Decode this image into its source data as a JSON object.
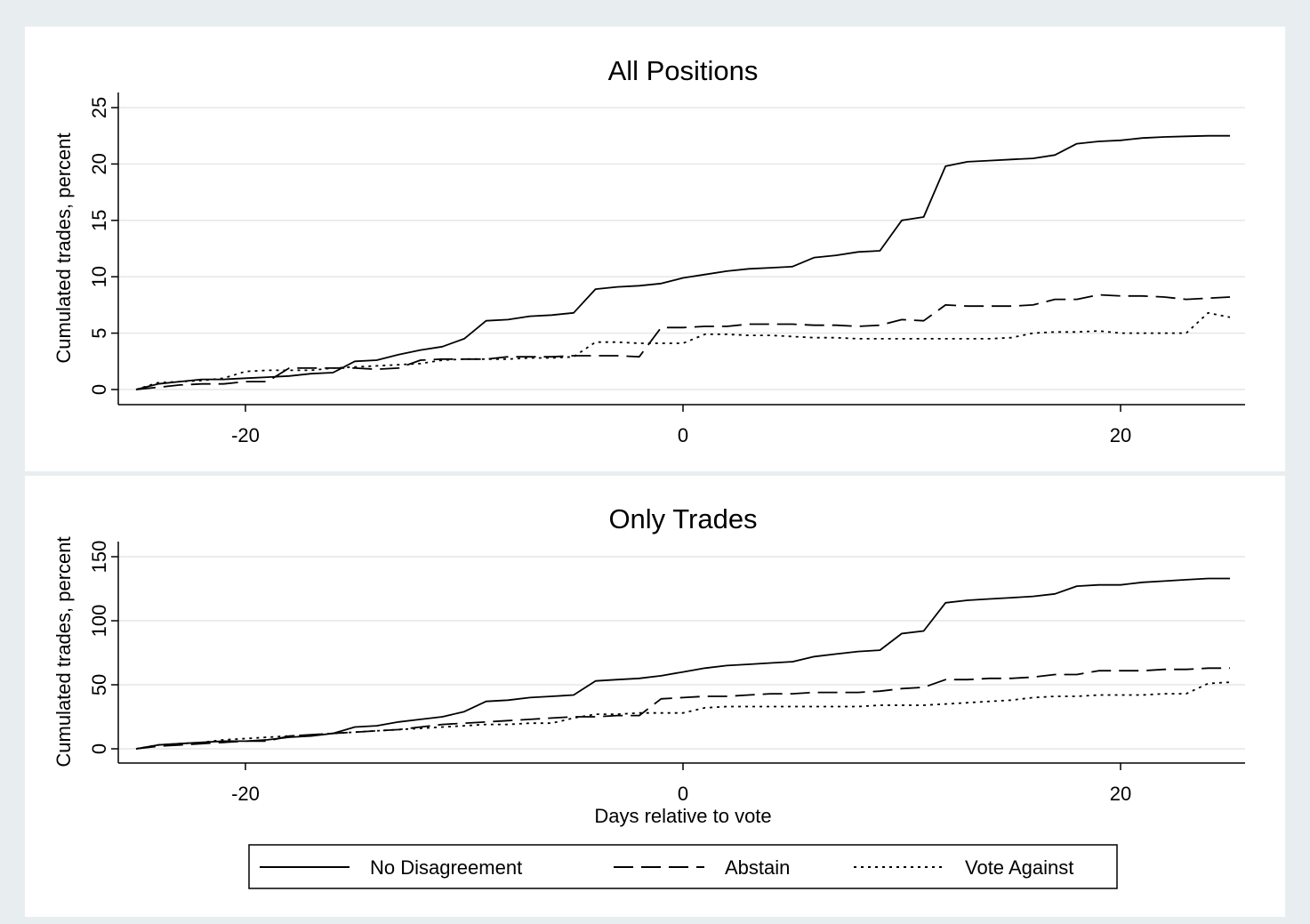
{
  "legend": {
    "items": [
      {
        "label": "No Disagreement",
        "dash": "solid"
      },
      {
        "label": "Abstain",
        "dash": "dash"
      },
      {
        "label": "Vote Against",
        "dash": "dot"
      }
    ]
  },
  "chart_data": [
    {
      "type": "line",
      "title": "All Positions",
      "xlabel": "",
      "ylabel": "Cumulated trades, percent",
      "xlim": [
        -25,
        25
      ],
      "ylim": [
        0,
        25
      ],
      "xticks": [
        -20,
        0,
        20
      ],
      "yticks": [
        0,
        5,
        10,
        15,
        20,
        25
      ],
      "grid": true,
      "series": [
        {
          "name": "No Disagreement",
          "dash": "solid",
          "x": [
            -25,
            -24,
            -23,
            -22,
            -21,
            -20,
            -19,
            -18,
            -17,
            -16,
            -15,
            -14,
            -13,
            -12,
            -11,
            -10,
            -9,
            -8,
            -7,
            -6,
            -5,
            -4,
            -3,
            -2,
            -1,
            0,
            1,
            2,
            3,
            4,
            5,
            6,
            7,
            8,
            9,
            10,
            11,
            12,
            13,
            14,
            15,
            16,
            17,
            18,
            19,
            20,
            21,
            22,
            23,
            24,
            25
          ],
          "y": [
            0,
            0.5,
            0.7,
            0.9,
            0.9,
            1.0,
            1.1,
            1.2,
            1.4,
            1.5,
            2.5,
            2.6,
            3.1,
            3.5,
            3.8,
            4.5,
            6.1,
            6.2,
            6.5,
            6.6,
            6.8,
            8.9,
            9.1,
            9.2,
            9.4,
            9.9,
            10.2,
            10.5,
            10.7,
            10.8,
            10.9,
            11.7,
            11.9,
            12.2,
            12.3,
            15.0,
            15.3,
            19.8,
            20.2,
            20.3,
            20.4,
            20.5,
            20.8,
            21.8,
            22.0,
            22.1,
            22.3,
            22.4,
            22.45,
            22.5,
            22.5
          ]
        },
        {
          "name": "Abstain",
          "dash": "dash",
          "x": [
            -25,
            -24,
            -23,
            -22,
            -21,
            -20,
            -19,
            -18,
            -17,
            -16,
            -15,
            -14,
            -13,
            -12,
            -11,
            -10,
            -9,
            -8,
            -7,
            -6,
            -5,
            -4,
            -3,
            -2,
            -1,
            0,
            1,
            2,
            3,
            4,
            5,
            6,
            7,
            8,
            9,
            10,
            11,
            12,
            13,
            14,
            15,
            16,
            17,
            18,
            19,
            20,
            21,
            22,
            23,
            24,
            25
          ],
          "y": [
            0,
            0.2,
            0.4,
            0.5,
            0.5,
            0.7,
            0.7,
            1.9,
            1.9,
            1.9,
            1.9,
            1.8,
            1.9,
            2.6,
            2.7,
            2.7,
            2.7,
            2.9,
            2.9,
            2.9,
            3.0,
            3.0,
            3.0,
            2.9,
            5.5,
            5.5,
            5.6,
            5.6,
            5.8,
            5.8,
            5.8,
            5.7,
            5.7,
            5.6,
            5.7,
            6.2,
            6.1,
            7.5,
            7.4,
            7.4,
            7.4,
            7.5,
            8.0,
            8.0,
            8.4,
            8.3,
            8.3,
            8.2,
            8.0,
            8.1,
            8.2
          ]
        },
        {
          "name": "Vote Against",
          "dash": "dot",
          "x": [
            -25,
            -24,
            -23,
            -22,
            -21,
            -20,
            -19,
            -18,
            -17,
            -16,
            -15,
            -14,
            -13,
            -12,
            -11,
            -10,
            -9,
            -8,
            -7,
            -6,
            -5,
            -4,
            -3,
            -2,
            -1,
            0,
            1,
            2,
            3,
            4,
            5,
            6,
            7,
            8,
            9,
            10,
            11,
            12,
            13,
            14,
            15,
            16,
            17,
            18,
            19,
            20,
            21,
            22,
            23,
            24,
            25
          ],
          "y": [
            0,
            0.6,
            0.7,
            0.8,
            1.0,
            1.6,
            1.7,
            1.7,
            1.7,
            1.9,
            2.0,
            2.1,
            2.2,
            2.3,
            2.6,
            2.7,
            2.7,
            2.7,
            2.8,
            2.8,
            2.9,
            4.2,
            4.2,
            4.1,
            4.1,
            4.1,
            4.9,
            4.9,
            4.8,
            4.8,
            4.7,
            4.6,
            4.6,
            4.5,
            4.5,
            4.5,
            4.5,
            4.5,
            4.5,
            4.5,
            4.6,
            5.0,
            5.1,
            5.1,
            5.2,
            5.0,
            5.0,
            5.0,
            5.0,
            6.8,
            6.4
          ]
        }
      ]
    },
    {
      "type": "line",
      "title": "Only Trades",
      "xlabel": "Days relative to vote",
      "ylabel": "Cumulated trades, percent",
      "xlim": [
        -25,
        25
      ],
      "ylim": [
        0,
        150
      ],
      "xticks": [
        -20,
        0,
        20
      ],
      "yticks": [
        0,
        50,
        100,
        150
      ],
      "grid": true,
      "series": [
        {
          "name": "No Disagreement",
          "dash": "solid",
          "x": [
            -25,
            -24,
            -23,
            -22,
            -21,
            -20,
            -19,
            -18,
            -17,
            -16,
            -15,
            -14,
            -13,
            -12,
            -11,
            -10,
            -9,
            -8,
            -7,
            -6,
            -5,
            -4,
            -3,
            -2,
            -1,
            0,
            1,
            2,
            3,
            4,
            5,
            6,
            7,
            8,
            9,
            10,
            11,
            12,
            13,
            14,
            15,
            16,
            17,
            18,
            19,
            20,
            21,
            22,
            23,
            24,
            25
          ],
          "y": [
            0,
            3,
            4,
            5,
            6,
            6,
            7,
            9,
            10,
            12,
            17,
            18,
            21,
            23,
            25,
            29,
            37,
            38,
            40,
            41,
            42,
            53,
            54,
            55,
            57,
            60,
            63,
            65,
            66,
            67,
            68,
            72,
            74,
            76,
            77,
            90,
            92,
            114,
            116,
            117,
            118,
            119,
            121,
            127,
            128,
            128,
            130,
            131,
            132,
            133,
            133
          ]
        },
        {
          "name": "Abstain",
          "dash": "dash",
          "x": [
            -25,
            -24,
            -23,
            -22,
            -21,
            -20,
            -19,
            -18,
            -17,
            -16,
            -15,
            -14,
            -13,
            -12,
            -11,
            -10,
            -9,
            -8,
            -7,
            -6,
            -5,
            -4,
            -3,
            -2,
            -1,
            0,
            1,
            2,
            3,
            4,
            5,
            6,
            7,
            8,
            9,
            10,
            11,
            12,
            13,
            14,
            15,
            16,
            17,
            18,
            19,
            20,
            21,
            22,
            23,
            24,
            25
          ],
          "y": [
            0,
            2,
            3,
            4,
            5,
            6,
            6,
            10,
            11,
            12,
            13,
            14,
            15,
            17,
            19,
            20,
            21,
            22,
            23,
            24,
            25,
            25,
            26,
            26,
            39,
            40,
            41,
            41,
            42,
            43,
            43,
            44,
            44,
            44,
            45,
            47,
            48,
            54,
            54,
            55,
            55,
            56,
            58,
            58,
            61,
            61,
            61,
            62,
            62,
            63,
            63
          ]
        },
        {
          "name": "Vote Against",
          "dash": "dot",
          "x": [
            -25,
            -24,
            -23,
            -22,
            -21,
            -20,
            -19,
            -18,
            -17,
            -16,
            -15,
            -14,
            -13,
            -12,
            -11,
            -10,
            -9,
            -8,
            -7,
            -6,
            -5,
            -4,
            -3,
            -2,
            -1,
            0,
            1,
            2,
            3,
            4,
            5,
            6,
            7,
            8,
            9,
            10,
            11,
            12,
            13,
            14,
            15,
            16,
            17,
            18,
            19,
            20,
            21,
            22,
            23,
            24,
            25
          ],
          "y": [
            0,
            3,
            4,
            5,
            7,
            8,
            9,
            10,
            11,
            12,
            13,
            14,
            15,
            16,
            17,
            18,
            19,
            19,
            20,
            20,
            24,
            27,
            27,
            28,
            28,
            28,
            32,
            33,
            33,
            33,
            33,
            33,
            33,
            33,
            34,
            34,
            34,
            35,
            36,
            37,
            38,
            40,
            41,
            41,
            42,
            42,
            42,
            43,
            43,
            51,
            52
          ]
        }
      ]
    }
  ]
}
